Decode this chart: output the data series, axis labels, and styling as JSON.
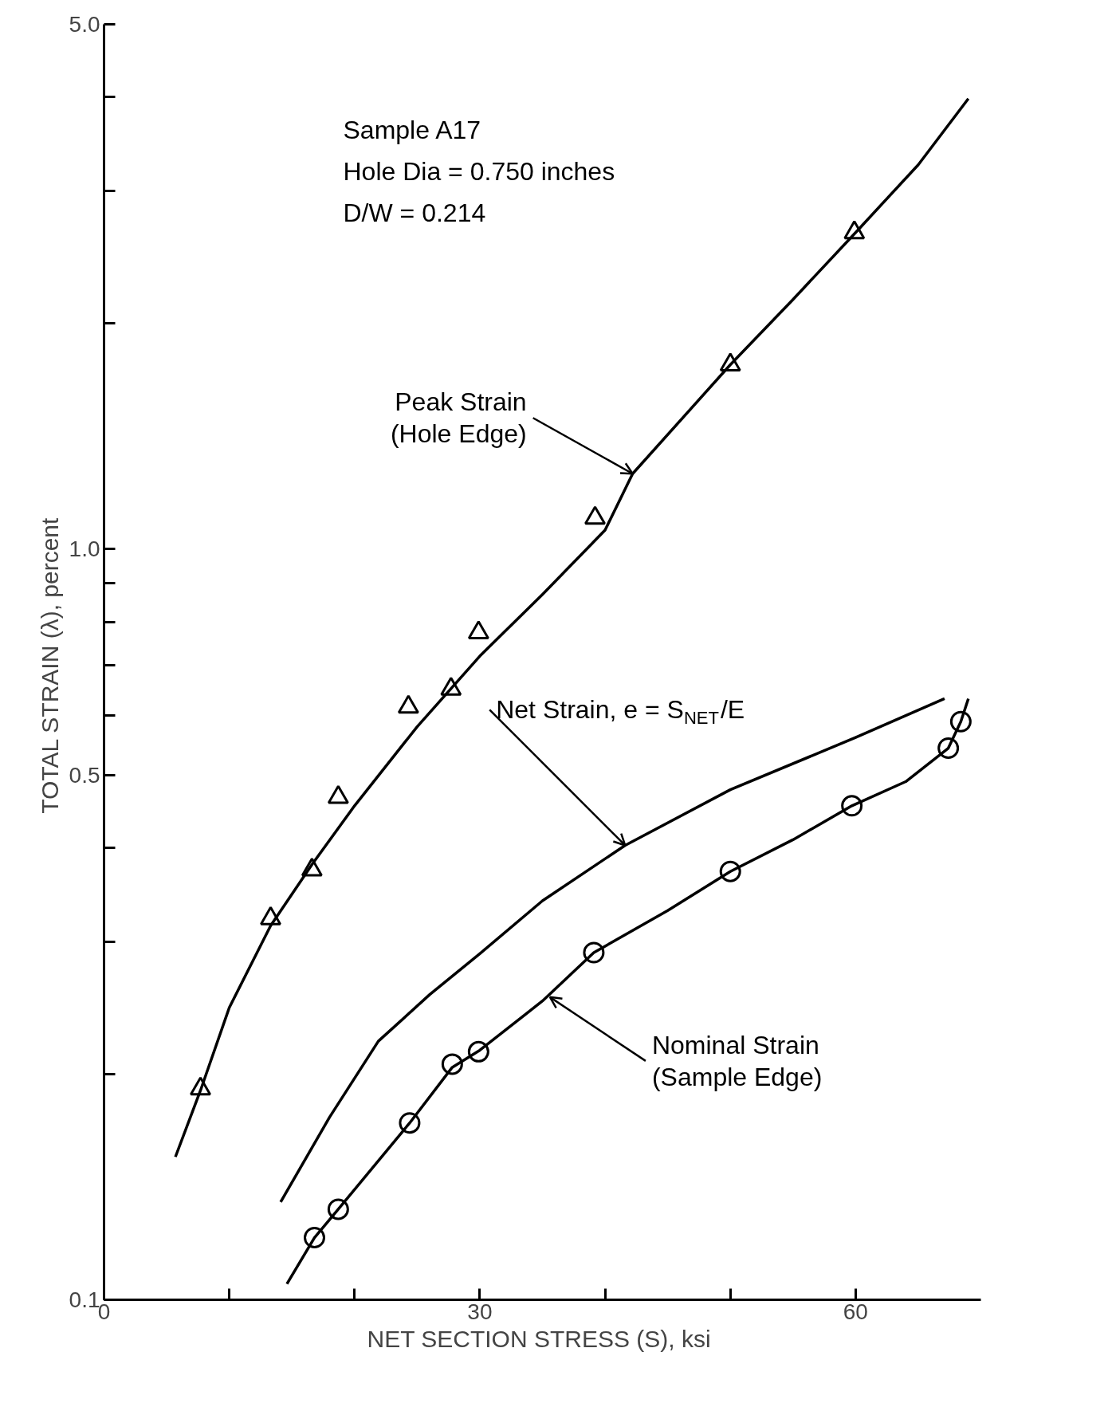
{
  "chart_data": {
    "type": "scatter",
    "xlabel": "NET SECTION STRESS (S),  ksi",
    "ylabel": "TOTAL STRAIN (λ),  percent",
    "log": "y",
    "xlim": [
      0,
      70
    ],
    "ylim": [
      0.1,
      5.0
    ],
    "xticks": [
      0,
      {
        "value": 10,
        "label": null
      },
      {
        "value": 20,
        "label": null
      },
      30,
      {
        "value": 40,
        "label": null
      },
      {
        "value": 50,
        "label": null
      },
      60
    ],
    "yticks": [
      0.1,
      {
        "value": 0.2,
        "label": null
      },
      {
        "value": 0.3,
        "label": null
      },
      {
        "value": 0.4,
        "label": null
      },
      0.5,
      {
        "value": 0.6,
        "label": null
      },
      {
        "value": 0.7,
        "label": null
      },
      {
        "value": 0.8,
        "label": null
      },
      {
        "value": 0.9,
        "label": null
      },
      {
        "value": 1,
        "label": "1.0"
      },
      {
        "value": 2,
        "label": null
      },
      {
        "value": 3,
        "label": null
      },
      {
        "value": 4,
        "label": null
      },
      {
        "value": 5,
        "label": "5.0"
      }
    ],
    "grid": false,
    "series": [
      {
        "marker": "triangle",
        "color": "#000000",
        "x": [
          7.7,
          13.3,
          16.6,
          18.7,
          24.3,
          27.7,
          29.9,
          39.2,
          50.0,
          59.9
        ],
        "values": [
          0.191,
          0.322,
          0.374,
          0.467,
          0.616,
          0.651,
          0.774,
          1.1,
          1.76,
          2.64
        ]
      },
      {
        "marker": "circle",
        "color": "#000000",
        "x": [
          16.8,
          18.7,
          24.4,
          27.8,
          29.9,
          39.1,
          50.0,
          59.7,
          67.4,
          68.4
        ],
        "values": [
          0.121,
          0.132,
          0.172,
          0.206,
          0.214,
          0.29,
          0.372,
          0.455,
          0.543,
          0.589
        ]
      },
      {
        "type": "line",
        "marker": "none",
        "line_style": "solid",
        "color": "#000000",
        "x": [
          5.7,
          7.7,
          10,
          13.3,
          16.6,
          20,
          25,
          30,
          35,
          40,
          42.2,
          50,
          55,
          60,
          65,
          69
        ],
        "values": [
          0.155,
          0.19,
          0.245,
          0.315,
          0.38,
          0.455,
          0.58,
          0.72,
          0.87,
          1.06,
          1.26,
          1.76,
          2.15,
          2.64,
          3.25,
          3.98
        ]
      },
      {
        "type": "line",
        "marker": "none",
        "line_style": "solid",
        "color": "#000000",
        "x": [
          14.1,
          18,
          21.9,
          26,
          30,
          35,
          41.6,
          50,
          60,
          67.1
        ],
        "values": [
          0.135,
          0.175,
          0.221,
          0.255,
          0.289,
          0.34,
          0.403,
          0.478,
          0.561,
          0.632
        ]
      },
      {
        "type": "line",
        "marker": "none",
        "line_style": "solid",
        "color": "#000000",
        "x": [
          14.6,
          16.8,
          18.7,
          24.4,
          27.8,
          30,
          35,
          39.1,
          45,
          50,
          55,
          59.7,
          64,
          67.4,
          68.4,
          69.0
        ],
        "values": [
          0.105,
          0.121,
          0.132,
          0.172,
          0.204,
          0.215,
          0.25,
          0.29,
          0.33,
          0.372,
          0.41,
          0.455,
          0.49,
          0.543,
          0.589,
          0.632
        ]
      }
    ],
    "annotations": [
      "Sample A17",
      "Hole Dia = 0.750 inches",
      "D/W = 0.214",
      {
        "text": "Peak Strain\n(Hole Edge)",
        "x": 42.2,
        "y": 1.26
      },
      {
        "text": "Net Strain, e = S$_{NET}$/E",
        "x": 41.6,
        "y": 0.403
      },
      {
        "text": "Nominal Strain\n(Sample Edge)",
        "x": 35.6,
        "y": 0.253
      }
    ]
  }
}
